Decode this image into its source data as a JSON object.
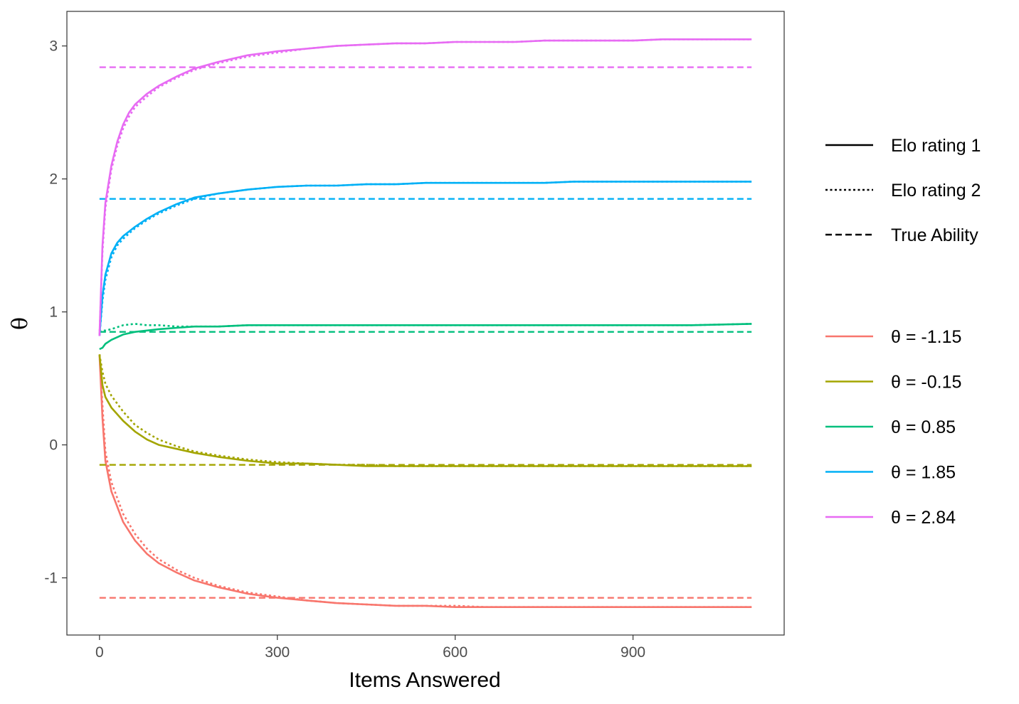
{
  "chart_data": {
    "type": "line",
    "title": "",
    "xlabel": "Items Answered",
    "ylabel": "θ",
    "xlim": [
      -55,
      1155
    ],
    "ylim": [
      -1.43,
      3.26
    ],
    "x_ticks": [
      0,
      300,
      600,
      900
    ],
    "y_ticks": [
      -1,
      0,
      1,
      2,
      3
    ],
    "grid": false,
    "legend_position": "right",
    "linetype_legend": [
      {
        "label": "Elo rating 1",
        "dash": "solid"
      },
      {
        "label": "Elo rating 2",
        "dash": "dotted"
      },
      {
        "label": "True Ability",
        "dash": "dashed"
      }
    ],
    "groups": [
      {
        "label": "θ = -1.15",
        "color": "#F8766D",
        "true_ability": -1.15,
        "elo1": [
          [
            0,
            0.68
          ],
          [
            5,
            0.2
          ],
          [
            10,
            -0.12
          ],
          [
            20,
            -0.35
          ],
          [
            40,
            -0.58
          ],
          [
            60,
            -0.72
          ],
          [
            80,
            -0.82
          ],
          [
            100,
            -0.89
          ],
          [
            130,
            -0.96
          ],
          [
            160,
            -1.02
          ],
          [
            200,
            -1.07
          ],
          [
            250,
            -1.12
          ],
          [
            300,
            -1.15
          ],
          [
            350,
            -1.17
          ],
          [
            400,
            -1.19
          ],
          [
            450,
            -1.2
          ],
          [
            500,
            -1.21
          ],
          [
            550,
            -1.21
          ],
          [
            600,
            -1.22
          ],
          [
            650,
            -1.22
          ],
          [
            700,
            -1.22
          ],
          [
            750,
            -1.22
          ],
          [
            800,
            -1.22
          ],
          [
            850,
            -1.22
          ],
          [
            900,
            -1.22
          ],
          [
            950,
            -1.22
          ],
          [
            1000,
            -1.22
          ],
          [
            1100,
            -1.22
          ]
        ],
        "elo2": [
          [
            0,
            0.68
          ],
          [
            5,
            0.3
          ],
          [
            10,
            -0.05
          ],
          [
            20,
            -0.28
          ],
          [
            40,
            -0.52
          ],
          [
            60,
            -0.67
          ],
          [
            80,
            -0.78
          ],
          [
            100,
            -0.86
          ],
          [
            130,
            -0.94
          ],
          [
            160,
            -1.0
          ],
          [
            200,
            -1.06
          ],
          [
            250,
            -1.11
          ],
          [
            300,
            -1.14
          ],
          [
            350,
            -1.17
          ],
          [
            400,
            -1.19
          ],
          [
            450,
            -1.2
          ],
          [
            500,
            -1.21
          ],
          [
            550,
            -1.21
          ],
          [
            600,
            -1.21
          ],
          [
            650,
            -1.22
          ],
          [
            700,
            -1.22
          ],
          [
            750,
            -1.22
          ],
          [
            800,
            -1.22
          ],
          [
            850,
            -1.22
          ],
          [
            900,
            -1.22
          ],
          [
            950,
            -1.22
          ],
          [
            1000,
            -1.22
          ],
          [
            1100,
            -1.22
          ]
        ]
      },
      {
        "label": "θ = -0.15",
        "color": "#A3A500",
        "true_ability": -0.15,
        "elo1": [
          [
            0,
            0.68
          ],
          [
            5,
            0.45
          ],
          [
            10,
            0.36
          ],
          [
            20,
            0.28
          ],
          [
            40,
            0.18
          ],
          [
            60,
            0.1
          ],
          [
            80,
            0.04
          ],
          [
            100,
            0.0
          ],
          [
            130,
            -0.03
          ],
          [
            160,
            -0.06
          ],
          [
            200,
            -0.09
          ],
          [
            250,
            -0.12
          ],
          [
            300,
            -0.14
          ],
          [
            350,
            -0.14
          ],
          [
            400,
            -0.15
          ],
          [
            450,
            -0.16
          ],
          [
            500,
            -0.16
          ],
          [
            550,
            -0.16
          ],
          [
            600,
            -0.16
          ],
          [
            650,
            -0.16
          ],
          [
            700,
            -0.16
          ],
          [
            750,
            -0.16
          ],
          [
            800,
            -0.16
          ],
          [
            850,
            -0.16
          ],
          [
            900,
            -0.16
          ],
          [
            950,
            -0.16
          ],
          [
            1000,
            -0.16
          ],
          [
            1100,
            -0.16
          ]
        ],
        "elo2": [
          [
            0,
            0.68
          ],
          [
            5,
            0.55
          ],
          [
            10,
            0.46
          ],
          [
            20,
            0.37
          ],
          [
            40,
            0.25
          ],
          [
            60,
            0.15
          ],
          [
            80,
            0.09
          ],
          [
            100,
            0.04
          ],
          [
            130,
            -0.01
          ],
          [
            160,
            -0.05
          ],
          [
            200,
            -0.08
          ],
          [
            250,
            -0.11
          ],
          [
            300,
            -0.13
          ],
          [
            350,
            -0.14
          ],
          [
            400,
            -0.15
          ],
          [
            450,
            -0.15
          ],
          [
            500,
            -0.16
          ],
          [
            550,
            -0.16
          ],
          [
            600,
            -0.16
          ],
          [
            650,
            -0.16
          ],
          [
            700,
            -0.16
          ],
          [
            750,
            -0.16
          ],
          [
            800,
            -0.16
          ],
          [
            850,
            -0.16
          ],
          [
            900,
            -0.16
          ],
          [
            950,
            -0.16
          ],
          [
            1000,
            -0.16
          ],
          [
            1100,
            -0.16
          ]
        ]
      },
      {
        "label": "θ = 0.85",
        "color": "#00BF7D",
        "true_ability": 0.85,
        "elo1": [
          [
            0,
            0.72
          ],
          [
            5,
            0.73
          ],
          [
            10,
            0.76
          ],
          [
            20,
            0.79
          ],
          [
            40,
            0.83
          ],
          [
            60,
            0.85
          ],
          [
            80,
            0.86
          ],
          [
            100,
            0.87
          ],
          [
            130,
            0.88
          ],
          [
            160,
            0.89
          ],
          [
            200,
            0.89
          ],
          [
            250,
            0.9
          ],
          [
            300,
            0.9
          ],
          [
            350,
            0.9
          ],
          [
            400,
            0.9
          ],
          [
            450,
            0.9
          ],
          [
            500,
            0.9
          ],
          [
            550,
            0.9
          ],
          [
            600,
            0.9
          ],
          [
            650,
            0.9
          ],
          [
            700,
            0.9
          ],
          [
            750,
            0.9
          ],
          [
            800,
            0.9
          ],
          [
            850,
            0.9
          ],
          [
            900,
            0.9
          ],
          [
            950,
            0.9
          ],
          [
            1000,
            0.9
          ],
          [
            1100,
            0.91
          ]
        ],
        "elo2": [
          [
            0,
            0.85
          ],
          [
            5,
            0.86
          ],
          [
            10,
            0.86
          ],
          [
            20,
            0.87
          ],
          [
            40,
            0.9
          ],
          [
            60,
            0.91
          ],
          [
            80,
            0.9
          ],
          [
            100,
            0.9
          ],
          [
            130,
            0.89
          ],
          [
            160,
            0.89
          ],
          [
            200,
            0.89
          ],
          [
            250,
            0.9
          ],
          [
            300,
            0.9
          ],
          [
            350,
            0.9
          ],
          [
            400,
            0.9
          ],
          [
            450,
            0.9
          ],
          [
            500,
            0.9
          ],
          [
            550,
            0.9
          ],
          [
            600,
            0.9
          ],
          [
            650,
            0.9
          ],
          [
            700,
            0.9
          ],
          [
            750,
            0.9
          ],
          [
            800,
            0.9
          ],
          [
            850,
            0.9
          ],
          [
            900,
            0.9
          ],
          [
            950,
            0.9
          ],
          [
            1000,
            0.9
          ],
          [
            1100,
            0.91
          ]
        ]
      },
      {
        "label": "θ = 1.85",
        "color": "#00B0F6",
        "true_ability": 1.85,
        "elo1": [
          [
            0,
            0.82
          ],
          [
            5,
            1.12
          ],
          [
            10,
            1.28
          ],
          [
            20,
            1.44
          ],
          [
            30,
            1.52
          ],
          [
            40,
            1.57
          ],
          [
            60,
            1.64
          ],
          [
            80,
            1.7
          ],
          [
            100,
            1.75
          ],
          [
            130,
            1.81
          ],
          [
            160,
            1.86
          ],
          [
            200,
            1.89
          ],
          [
            250,
            1.92
          ],
          [
            300,
            1.94
          ],
          [
            350,
            1.95
          ],
          [
            400,
            1.95
          ],
          [
            450,
            1.96
          ],
          [
            500,
            1.96
          ],
          [
            550,
            1.97
          ],
          [
            600,
            1.97
          ],
          [
            650,
            1.97
          ],
          [
            700,
            1.97
          ],
          [
            750,
            1.97
          ],
          [
            800,
            1.98
          ],
          [
            850,
            1.98
          ],
          [
            900,
            1.98
          ],
          [
            950,
            1.98
          ],
          [
            1000,
            1.98
          ],
          [
            1100,
            1.98
          ]
        ],
        "elo2": [
          [
            0,
            0.82
          ],
          [
            5,
            1.08
          ],
          [
            10,
            1.24
          ],
          [
            20,
            1.41
          ],
          [
            30,
            1.5
          ],
          [
            40,
            1.55
          ],
          [
            60,
            1.63
          ],
          [
            80,
            1.69
          ],
          [
            100,
            1.74
          ],
          [
            130,
            1.8
          ],
          [
            160,
            1.85
          ],
          [
            200,
            1.89
          ],
          [
            250,
            1.92
          ],
          [
            300,
            1.94
          ],
          [
            350,
            1.95
          ],
          [
            400,
            1.95
          ],
          [
            450,
            1.96
          ],
          [
            500,
            1.96
          ],
          [
            550,
            1.97
          ],
          [
            600,
            1.97
          ],
          [
            650,
            1.97
          ],
          [
            700,
            1.97
          ],
          [
            750,
            1.97
          ],
          [
            800,
            1.98
          ],
          [
            850,
            1.98
          ],
          [
            900,
            1.98
          ],
          [
            950,
            1.98
          ],
          [
            1000,
            1.98
          ],
          [
            1100,
            1.98
          ]
        ]
      },
      {
        "label": "θ = 2.84",
        "color": "#E76BF3",
        "true_ability": 2.84,
        "elo1": [
          [
            0,
            0.82
          ],
          [
            5,
            1.5
          ],
          [
            10,
            1.82
          ],
          [
            20,
            2.1
          ],
          [
            30,
            2.28
          ],
          [
            40,
            2.41
          ],
          [
            50,
            2.5
          ],
          [
            60,
            2.56
          ],
          [
            80,
            2.64
          ],
          [
            100,
            2.7
          ],
          [
            130,
            2.77
          ],
          [
            160,
            2.83
          ],
          [
            200,
            2.88
          ],
          [
            250,
            2.93
          ],
          [
            300,
            2.96
          ],
          [
            350,
            2.98
          ],
          [
            400,
            3.0
          ],
          [
            450,
            3.01
          ],
          [
            500,
            3.02
          ],
          [
            550,
            3.02
          ],
          [
            600,
            3.03
          ],
          [
            650,
            3.03
          ],
          [
            700,
            3.03
          ],
          [
            750,
            3.04
          ],
          [
            800,
            3.04
          ],
          [
            850,
            3.04
          ],
          [
            900,
            3.04
          ],
          [
            950,
            3.05
          ],
          [
            1000,
            3.05
          ],
          [
            1100,
            3.05
          ]
        ],
        "elo2": [
          [
            0,
            0.82
          ],
          [
            5,
            1.45
          ],
          [
            10,
            1.78
          ],
          [
            20,
            2.07
          ],
          [
            30,
            2.25
          ],
          [
            40,
            2.38
          ],
          [
            50,
            2.47
          ],
          [
            60,
            2.54
          ],
          [
            80,
            2.62
          ],
          [
            100,
            2.69
          ],
          [
            130,
            2.76
          ],
          [
            160,
            2.82
          ],
          [
            200,
            2.87
          ],
          [
            250,
            2.92
          ],
          [
            300,
            2.95
          ],
          [
            350,
            2.98
          ],
          [
            400,
            3.0
          ],
          [
            450,
            3.01
          ],
          [
            500,
            3.02
          ],
          [
            550,
            3.02
          ],
          [
            600,
            3.03
          ],
          [
            650,
            3.03
          ],
          [
            700,
            3.03
          ],
          [
            750,
            3.04
          ],
          [
            800,
            3.04
          ],
          [
            850,
            3.04
          ],
          [
            900,
            3.04
          ],
          [
            950,
            3.05
          ],
          [
            1000,
            3.05
          ],
          [
            1100,
            3.05
          ]
        ]
      }
    ]
  }
}
